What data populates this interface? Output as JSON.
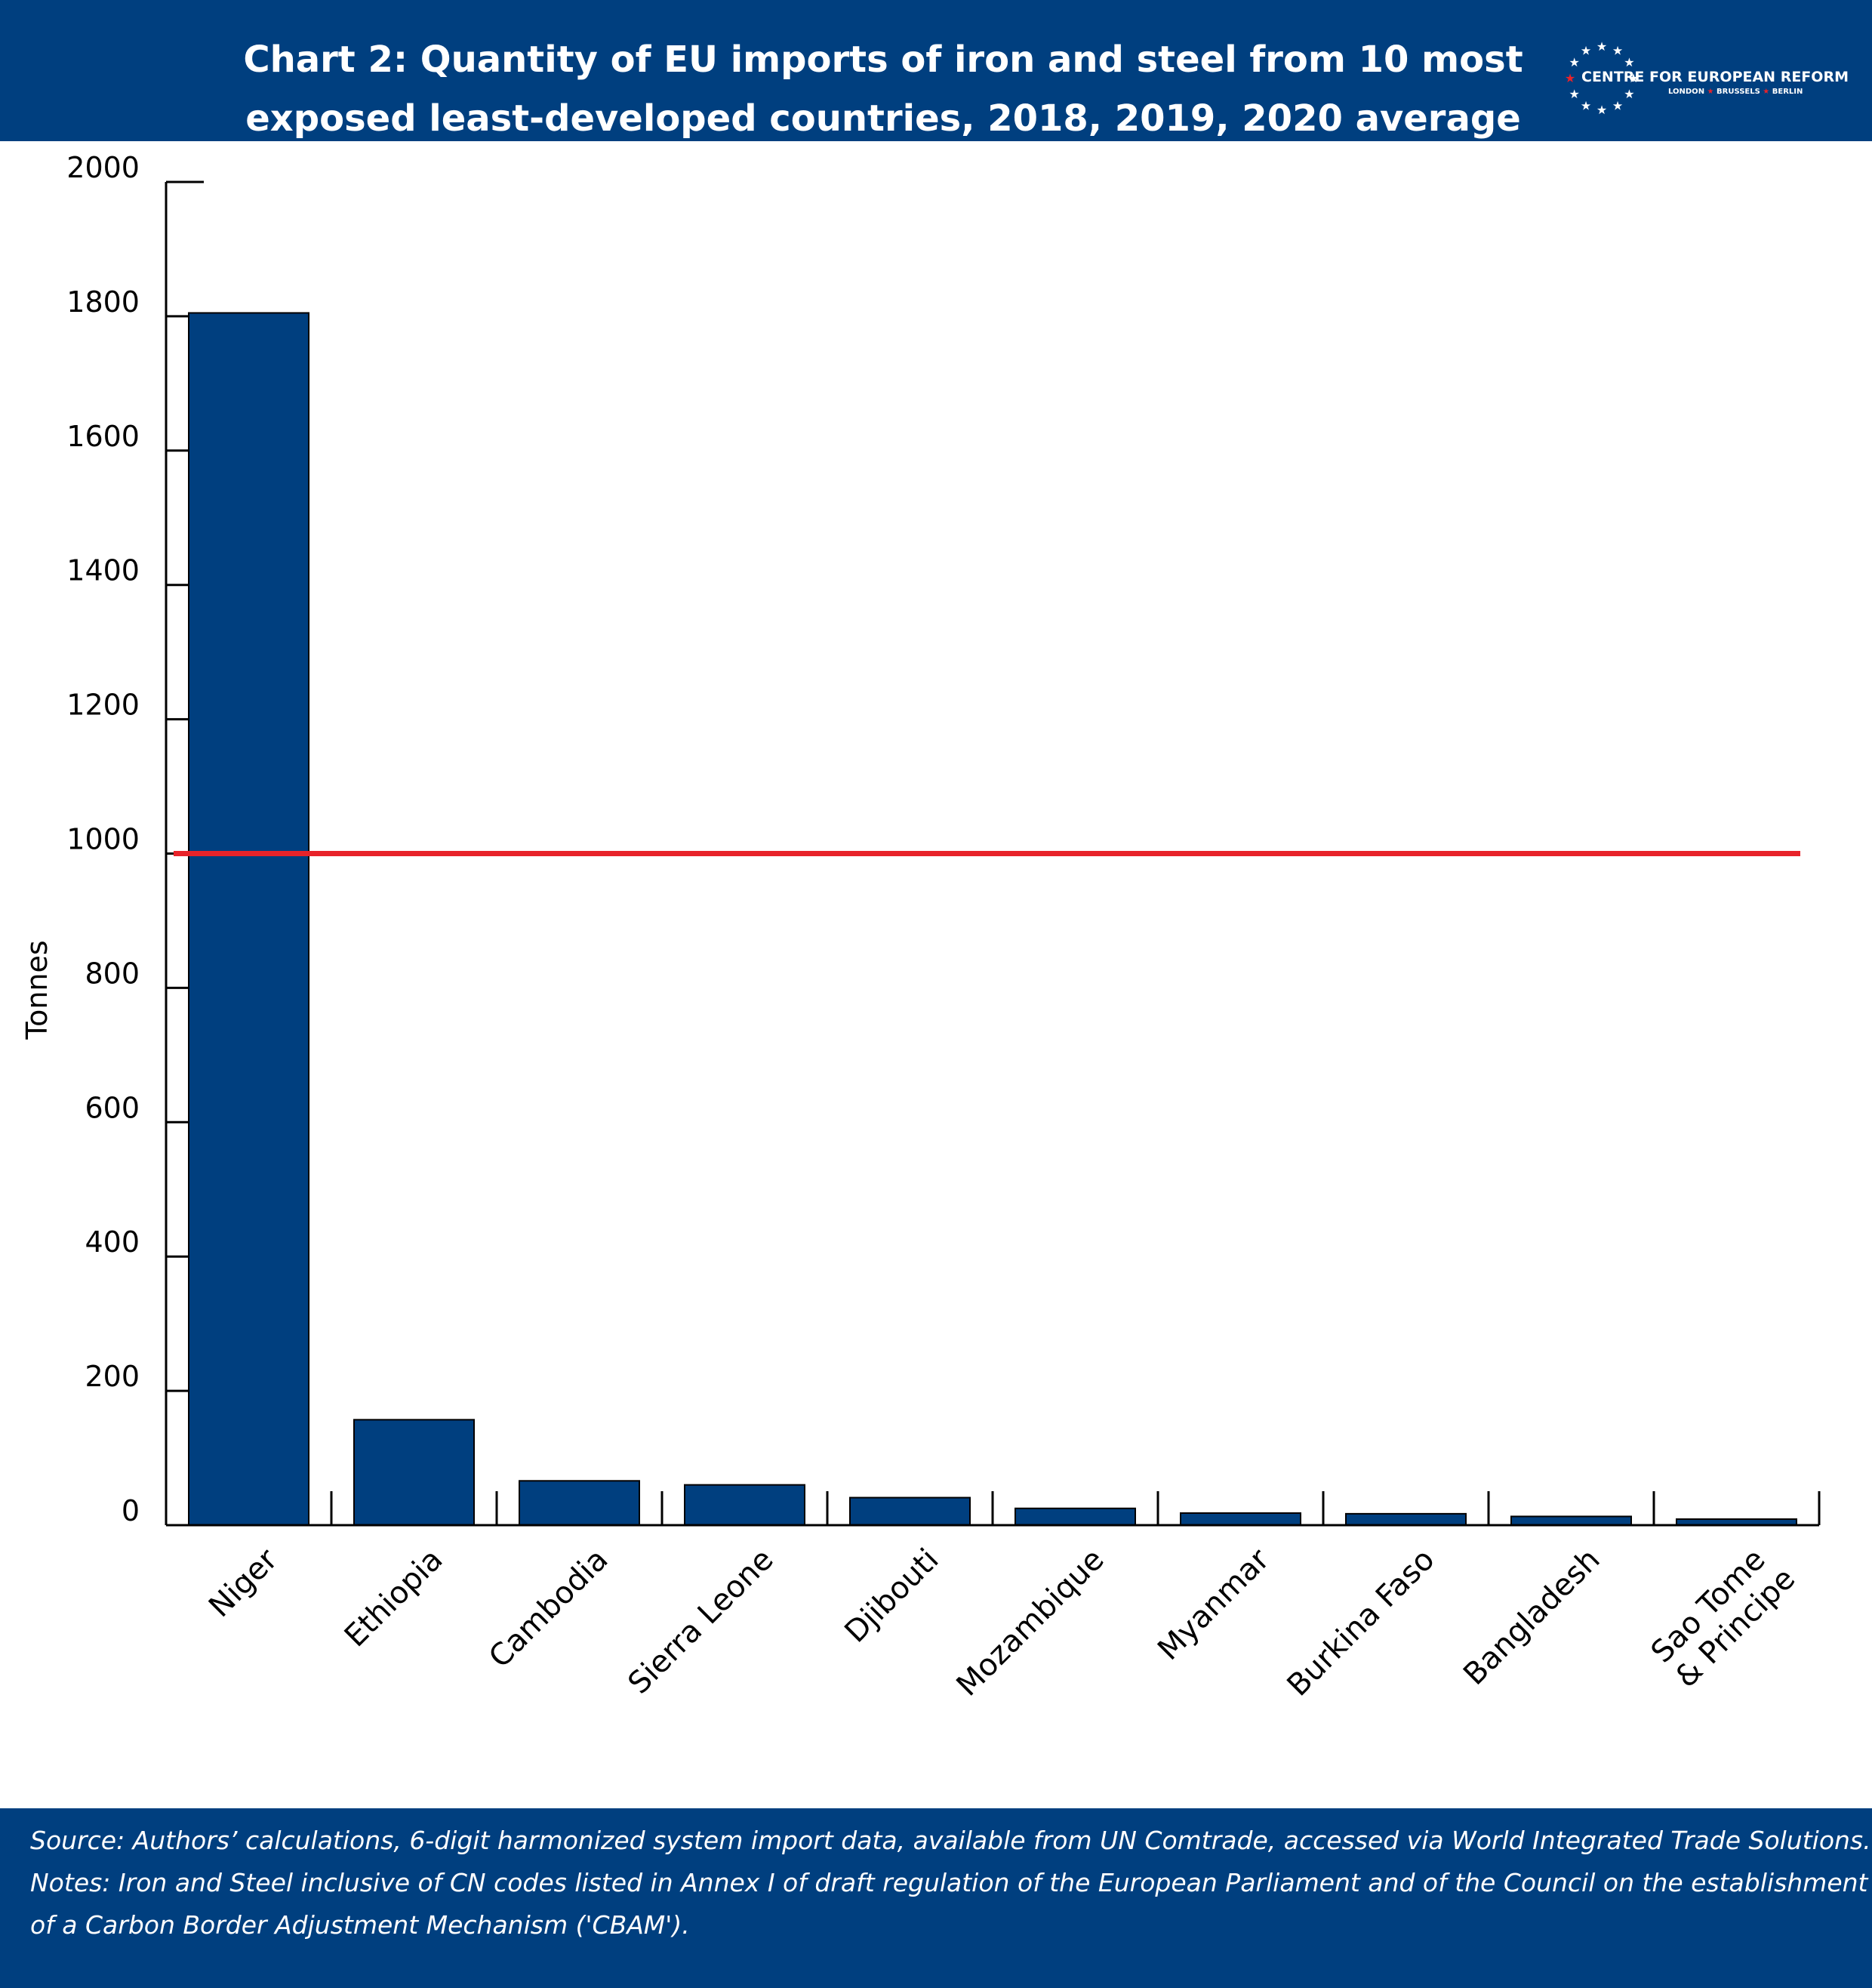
{
  "header": {
    "title_line1": "Chart 2: Quantity of EU imports of iron and steel from 10 most",
    "title_line2": "exposed least-developed countries, 2018, 2019, 2020 average",
    "logo_name": "CENTRE FOR EUROPEAN REFORM",
    "logo_city1": "LONDON",
    "logo_city2": "BRUSSELS",
    "logo_city3": "BERLIN",
    "logo_star": "★"
  },
  "colors": {
    "bar": "#003f7f",
    "reference_line": "#e8232a",
    "header_background": "#003f7f"
  },
  "chart_data": {
    "type": "bar",
    "categories": [
      "Niger",
      "Ethiopia",
      "Cambodia",
      "Sierra Leone",
      "Djibouti",
      "Mozambique",
      "Myanmar",
      "Burkina Faso",
      "Bangladesh",
      "Sao Tome & Principe"
    ],
    "category_label_lines": [
      [
        "Niger"
      ],
      [
        "Ethiopia"
      ],
      [
        "Cambodia"
      ],
      [
        "Sierra Leone"
      ],
      [
        "Djibouti"
      ],
      [
        "Mozambique"
      ],
      [
        "Myanmar"
      ],
      [
        "Burkina Faso"
      ],
      [
        "Bangladesh"
      ],
      [
        "Sao Tome",
        "& Principe"
      ]
    ],
    "values": [
      1805,
      157,
      66,
      60,
      41,
      25,
      18,
      17,
      13,
      9
    ],
    "reference_line": 1000,
    "ylabel": "Tonnes",
    "xlabel": "",
    "ylim": [
      0,
      2000
    ],
    "yticks": [
      0,
      200,
      400,
      600,
      800,
      1000,
      1200,
      1400,
      1600,
      1800,
      2000
    ],
    "grid": false,
    "legend": "none"
  },
  "footer": {
    "source": "Source: Authors’ calculations, 6-digit harmonized system import data, available from UN Comtrade, accessed via World Integrated Trade Solutions.",
    "notes_line1": "Notes: Iron and Steel inclusive of CN codes listed in Annex I of draft regulation of the European Parliament and of the Council on the establishment",
    "notes_line2": "of a Carbon Border Adjustment Mechanism ('CBAM')."
  }
}
